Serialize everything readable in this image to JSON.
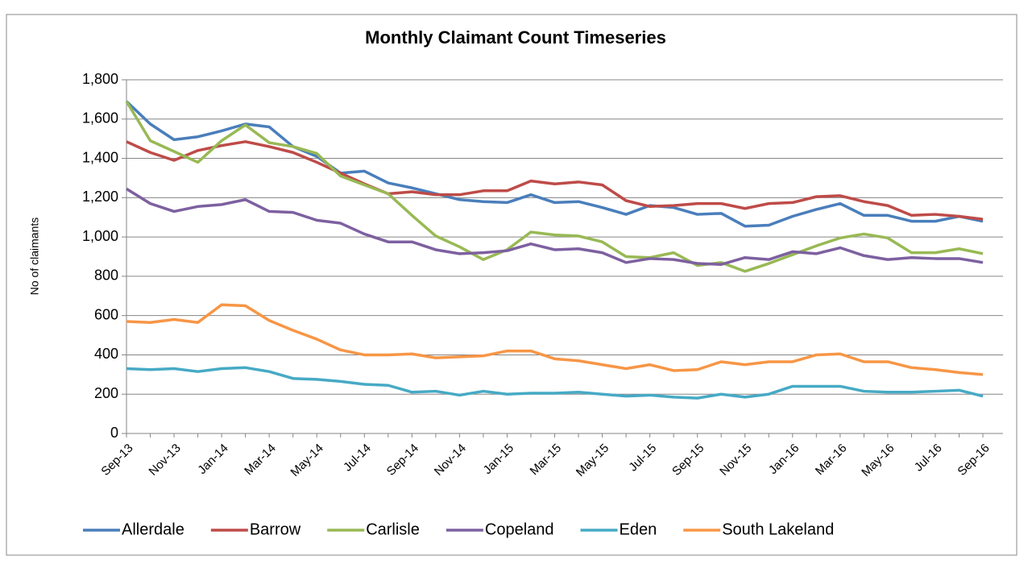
{
  "chart_data": {
    "type": "line",
    "title": "Monthly Claimant Count Timeseries",
    "y_label": "No of claimants",
    "categories": [
      "Sep-13",
      null,
      "Nov-13",
      null,
      "Jan-14",
      null,
      "Mar-14",
      null,
      "May-14",
      null,
      "Jul-14",
      null,
      "Sep-14",
      null,
      "Nov-14",
      null,
      "Jan-15",
      null,
      "Mar-15",
      null,
      "May-15",
      null,
      "Jul-15",
      null,
      "Sep-15",
      null,
      "Nov-15",
      null,
      "Jan-16",
      null,
      "Mar-16",
      null,
      "May-16",
      null,
      "Jul-16",
      null,
      "Sep-16"
    ],
    "series": [
      {
        "name": "Allerdale",
        "color": "#4a7ebb",
        "values": [
          1690,
          1575,
          1495,
          1510,
          1540,
          1575,
          1560,
          1460,
          1410,
          1325,
          1335,
          1275,
          1250,
          1220,
          1190,
          1180,
          1175,
          1215,
          1175,
          1180,
          1150,
          1115,
          1160,
          1150,
          1115,
          1120,
          1055,
          1060,
          1105,
          1140,
          1170,
          1110,
          1110,
          1080,
          1080,
          1105,
          1080
        ]
      },
      {
        "name": "Barrow",
        "color": "#be4b48",
        "values": [
          1485,
          1430,
          1390,
          1440,
          1465,
          1485,
          1460,
          1430,
          1380,
          1325,
          1270,
          1220,
          1230,
          1215,
          1215,
          1235,
          1235,
          1285,
          1270,
          1280,
          1265,
          1185,
          1155,
          1160,
          1170,
          1170,
          1145,
          1170,
          1175,
          1205,
          1210,
          1180,
          1160,
          1110,
          1115,
          1105,
          1090
        ]
      },
      {
        "name": "Carlisle",
        "color": "#98b954",
        "values": [
          1690,
          1490,
          1435,
          1380,
          1490,
          1570,
          1480,
          1460,
          1425,
          1310,
          1265,
          1220,
          1110,
          1005,
          950,
          885,
          935,
          1025,
          1010,
          1005,
          975,
          900,
          895,
          920,
          855,
          870,
          825,
          865,
          910,
          955,
          995,
          1015,
          995,
          920,
          920,
          940,
          915
        ]
      },
      {
        "name": "Copeland",
        "color": "#7d60a0",
        "values": [
          1245,
          1170,
          1130,
          1155,
          1165,
          1190,
          1130,
          1125,
          1085,
          1070,
          1015,
          975,
          975,
          935,
          915,
          920,
          930,
          965,
          935,
          940,
          920,
          870,
          890,
          885,
          865,
          860,
          895,
          885,
          925,
          915,
          945,
          905,
          885,
          895,
          890,
          890,
          870
        ]
      },
      {
        "name": "Eden",
        "color": "#46aac5",
        "values": [
          330,
          325,
          330,
          315,
          330,
          335,
          315,
          280,
          275,
          265,
          250,
          245,
          210,
          215,
          195,
          215,
          200,
          205,
          205,
          210,
          200,
          190,
          195,
          185,
          180,
          200,
          185,
          200,
          240,
          240,
          240,
          215,
          210,
          210,
          215,
          220,
          190
        ]
      },
      {
        "name": "South Lakeland",
        "color": "#f79646",
        "values": [
          570,
          565,
          580,
          565,
          655,
          650,
          575,
          525,
          480,
          425,
          400,
          400,
          405,
          385,
          390,
          395,
          420,
          420,
          380,
          370,
          350,
          330,
          350,
          320,
          325,
          365,
          350,
          365,
          365,
          400,
          405,
          365,
          365,
          335,
          325,
          310,
          300
        ]
      }
    ],
    "ylim": [
      0,
      1800
    ],
    "yticks": [
      0,
      200,
      400,
      600,
      800,
      {
        "value": 1000,
        "label": "1,000"
      },
      {
        "value": 1200,
        "label": "1,200"
      },
      {
        "value": 1400,
        "label": "1,400"
      },
      {
        "value": 1600,
        "label": "1,600"
      },
      {
        "value": 1800,
        "label": "1,800"
      }
    ],
    "grid": true,
    "legend": "bottom"
  }
}
